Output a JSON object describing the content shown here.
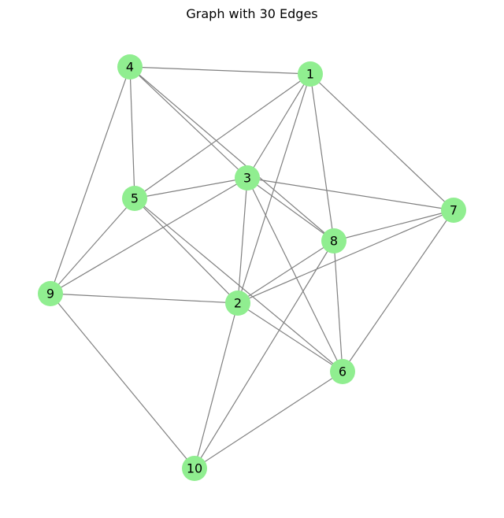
{
  "title": "Graph with 30 Edges",
  "style": {
    "node_color": "#90ee90",
    "edge_color": "#808080",
    "label_color": "#000000"
  },
  "graph": {
    "nodes": [
      "1",
      "2",
      "3",
      "4",
      "5",
      "6",
      "7",
      "8",
      "9",
      "10"
    ],
    "edges": [
      [
        "4",
        "1"
      ],
      [
        "4",
        "5"
      ],
      [
        "4",
        "3"
      ],
      [
        "4",
        "8"
      ],
      [
        "4",
        "9"
      ],
      [
        "1",
        "5"
      ],
      [
        "1",
        "3"
      ],
      [
        "1",
        "2"
      ],
      [
        "1",
        "8"
      ],
      [
        "1",
        "7"
      ],
      [
        "5",
        "3"
      ],
      [
        "5",
        "9"
      ],
      [
        "5",
        "2"
      ],
      [
        "5",
        "6"
      ],
      [
        "3",
        "7"
      ],
      [
        "3",
        "8"
      ],
      [
        "3",
        "9"
      ],
      [
        "3",
        "2"
      ],
      [
        "3",
        "6"
      ],
      [
        "7",
        "8"
      ],
      [
        "7",
        "2"
      ],
      [
        "7",
        "6"
      ],
      [
        "8",
        "2"
      ],
      [
        "8",
        "6"
      ],
      [
        "8",
        "10"
      ],
      [
        "9",
        "2"
      ],
      [
        "9",
        "10"
      ],
      [
        "2",
        "6"
      ],
      [
        "2",
        "10"
      ],
      [
        "6",
        "10"
      ]
    ]
  }
}
